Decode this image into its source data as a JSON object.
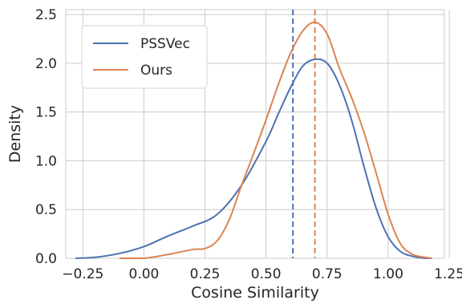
{
  "chart_data": {
    "type": "line",
    "title": "",
    "xlabel": "Cosine Similarity",
    "ylabel": "Density",
    "xlim": [
      -0.32,
      1.23
    ],
    "ylim": [
      0,
      2.55
    ],
    "xticks": [
      -0.25,
      0.0,
      0.25,
      0.5,
      0.75,
      1.0,
      1.25
    ],
    "xtick_labels": [
      "−0.25",
      "0.00",
      "0.25",
      "0.50",
      "0.75",
      "1.00",
      "1.25"
    ],
    "yticks": [
      0.0,
      0.5,
      1.0,
      1.5,
      2.0,
      2.5
    ],
    "ytick_labels": [
      "0.0",
      "0.5",
      "1.0",
      "1.5",
      "2.0",
      "2.5"
    ],
    "grid": true,
    "legend_position": "top-left",
    "series": [
      {
        "name": "PSSVec",
        "color": "#4c72b0",
        "mean_line": 0.61,
        "x": [
          -0.28,
          -0.2,
          -0.1,
          0.0,
          0.1,
          0.2,
          0.3,
          0.4,
          0.5,
          0.55,
          0.6,
          0.65,
          0.7,
          0.75,
          0.8,
          0.85,
          0.9,
          0.95,
          1.0,
          1.05,
          1.1,
          1.15,
          1.18
        ],
        "y": [
          0.0,
          0.01,
          0.05,
          0.12,
          0.23,
          0.33,
          0.45,
          0.75,
          1.2,
          1.48,
          1.75,
          1.97,
          2.04,
          2.0,
          1.78,
          1.42,
          0.95,
          0.52,
          0.22,
          0.07,
          0.02,
          0.0,
          0.0
        ]
      },
      {
        "name": "Ours",
        "color": "#dd8452",
        "mean_line": 0.7,
        "x": [
          -0.1,
          0.0,
          0.1,
          0.2,
          0.25,
          0.3,
          0.35,
          0.4,
          0.45,
          0.5,
          0.55,
          0.6,
          0.65,
          0.7,
          0.75,
          0.8,
          0.85,
          0.9,
          0.95,
          1.0,
          1.05,
          1.1,
          1.15,
          1.18
        ],
        "y": [
          0.0,
          0.0,
          0.04,
          0.09,
          0.1,
          0.18,
          0.4,
          0.75,
          1.08,
          1.42,
          1.78,
          2.1,
          2.33,
          2.42,
          2.3,
          1.95,
          1.65,
          1.3,
          0.88,
          0.45,
          0.15,
          0.04,
          0.01,
          0.0
        ]
      }
    ]
  }
}
